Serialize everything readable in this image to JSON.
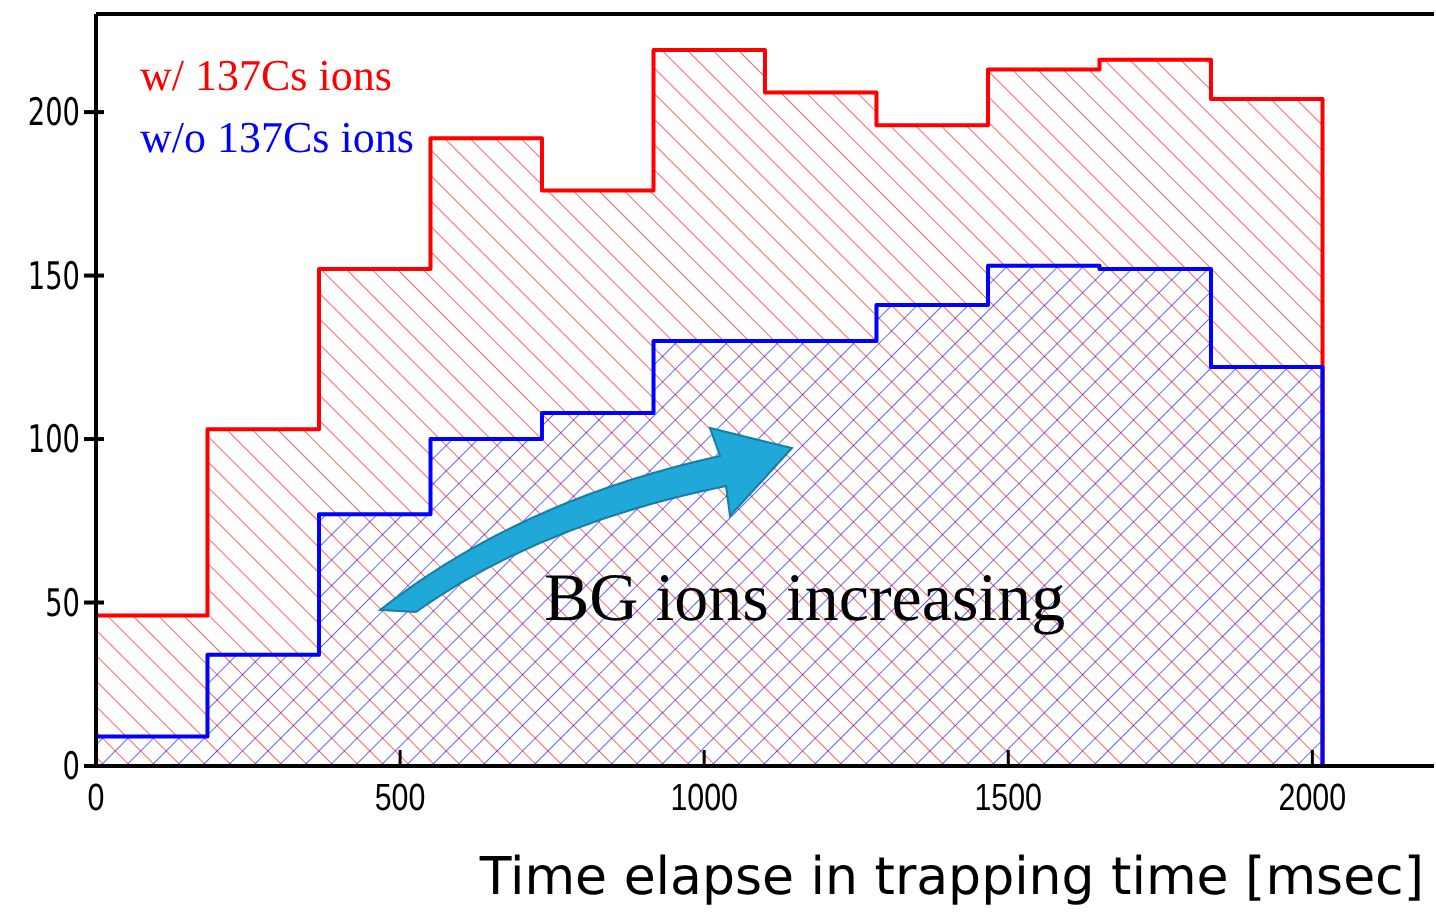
{
  "chart_data": {
    "type": "histogram",
    "xlabel": "Time elapse in trapping time [msec]",
    "bins": [
      0,
      183.3,
      366.7,
      550,
      733.3,
      916.7,
      1100,
      1283.3,
      1466.7,
      1650,
      1833.3,
      2016.7,
      2200
    ],
    "series": [
      {
        "name": "w/ 137Cs ions",
        "color": "#ff0000",
        "values": [
          46,
          103,
          152,
          192,
          176,
          219,
          206,
          196,
          213,
          216,
          204,
          0
        ]
      },
      {
        "name": "w/o 137Cs ions",
        "color": "#0000ff",
        "values": [
          9,
          34,
          77,
          100,
          108,
          130,
          130,
          141,
          153,
          152,
          122,
          0
        ]
      }
    ],
    "xlim": [
      0,
      2200
    ],
    "ylim": [
      0,
      230
    ],
    "xticks": [
      0,
      500,
      1000,
      1500,
      2000
    ],
    "yticks": [
      0,
      50,
      100,
      150,
      200
    ],
    "legend": "top left",
    "grid": false,
    "annotations": [
      "BG ions increasing"
    ]
  }
}
